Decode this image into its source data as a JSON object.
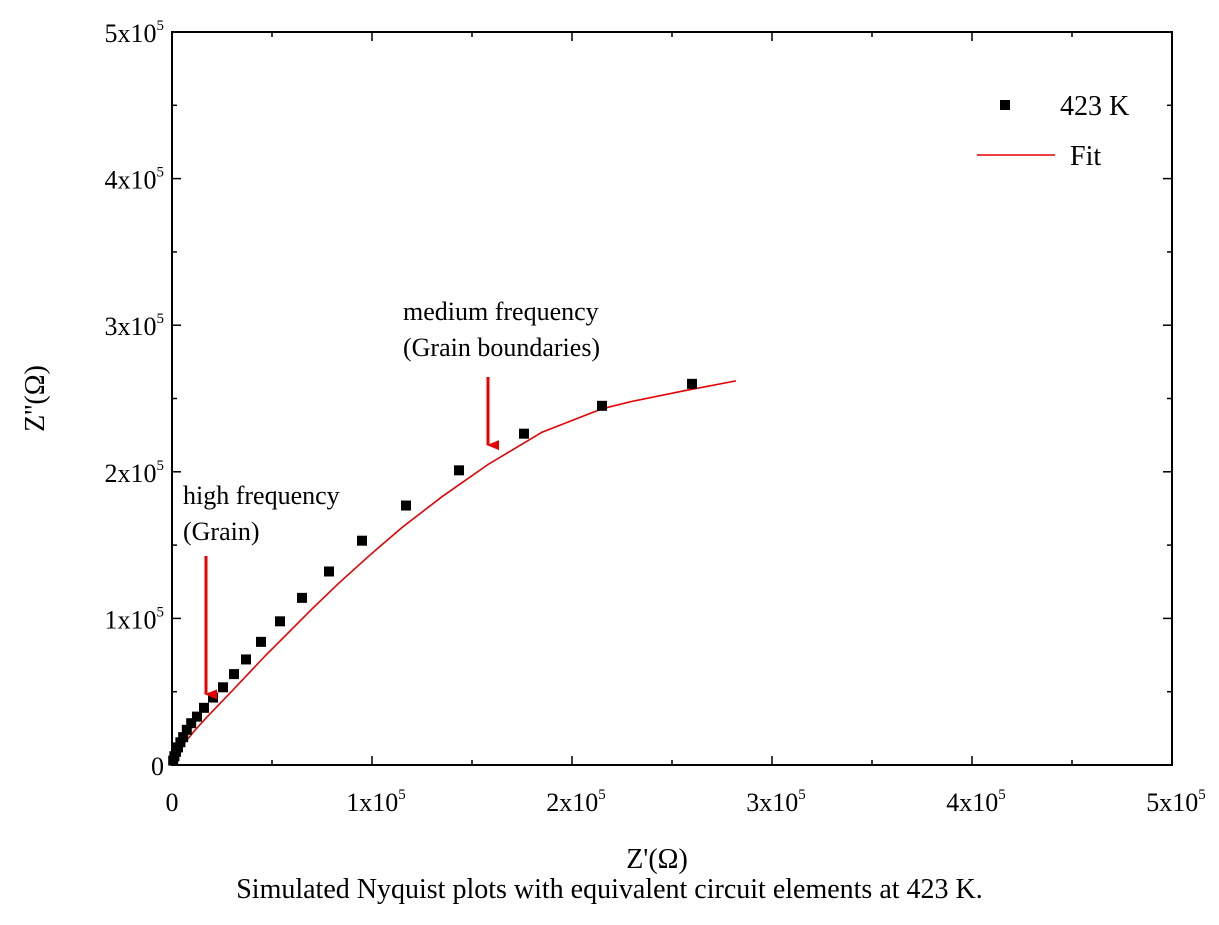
{
  "chart_data": {
    "type": "scatter",
    "title": "",
    "caption": "Simulated Nyquist plots with equivalent circuit elements at 423 K.",
    "xlabel": "Z'(Ω)",
    "ylabel": "Z''(Ω)",
    "xlim": [
      0,
      500000
    ],
    "ylim": [
      0,
      500000
    ],
    "grid": false,
    "legend_position": "top-right",
    "x_ticks": [
      {
        "value": 0,
        "mantissa": "0",
        "exp": ""
      },
      {
        "value": 100000,
        "mantissa": "1x10",
        "exp": "5"
      },
      {
        "value": 200000,
        "mantissa": "2x10",
        "exp": "5"
      },
      {
        "value": 300000,
        "mantissa": "3x10",
        "exp": "5"
      },
      {
        "value": 400000,
        "mantissa": "4x10",
        "exp": "5"
      },
      {
        "value": 500000,
        "mantissa": "5x10",
        "exp": "5"
      }
    ],
    "y_ticks": [
      {
        "value": 0,
        "mantissa": "0",
        "exp": ""
      },
      {
        "value": 100000,
        "mantissa": "1x10",
        "exp": "5"
      },
      {
        "value": 200000,
        "mantissa": "2x10",
        "exp": "5"
      },
      {
        "value": 300000,
        "mantissa": "3x10",
        "exp": "5"
      },
      {
        "value": 400000,
        "mantissa": "4x10",
        "exp": "5"
      },
      {
        "value": 500000,
        "mantissa": "5x10",
        "exp": "5"
      }
    ],
    "series": [
      {
        "name": "423 K",
        "kind": "scatter",
        "marker": "square",
        "color": "#000000",
        "x": [
          600,
          1200,
          2000,
          3000,
          4200,
          5600,
          7400,
          9600,
          12500,
          16000,
          20500,
          25500,
          31000,
          37000,
          44500,
          54000,
          65000,
          78500,
          95000,
          117000,
          143500,
          176000,
          215000,
          260000
        ],
        "y": [
          3000,
          6000,
          9000,
          12000,
          15500,
          19000,
          24000,
          28500,
          33000,
          39000,
          46000,
          53000,
          62000,
          72000,
          84000,
          98000,
          114000,
          132000,
          153000,
          177000,
          201000,
          226000,
          245000,
          260000
        ]
      },
      {
        "name": "Fit",
        "kind": "line",
        "color": "#e60000",
        "x": [
          0,
          1000,
          2500,
          5000,
          8000,
          12000,
          17000,
          23000,
          30000,
          38000,
          47000,
          58000,
          70000,
          83000,
          98000,
          115000,
          135000,
          158000,
          185000,
          215000,
          230000,
          255000,
          282000
        ],
        "y": [
          0,
          4000,
          8000,
          13000,
          18000,
          24500,
          32000,
          40500,
          50500,
          62000,
          75000,
          90000,
          106500,
          123500,
          142000,
          162000,
          183000,
          205000,
          227000,
          243000,
          248000,
          255000,
          262000
        ]
      }
    ],
    "annotations": [
      {
        "lines": [
          "high frequency",
          "(Grain)"
        ],
        "arrow_x": 17000,
        "arrow_y": 40000,
        "color": "#e60000"
      },
      {
        "lines": [
          "medium frequency",
          "(Grain boundaries)"
        ],
        "arrow_x": 158000,
        "arrow_y": 210000,
        "color": "#e60000"
      }
    ]
  }
}
